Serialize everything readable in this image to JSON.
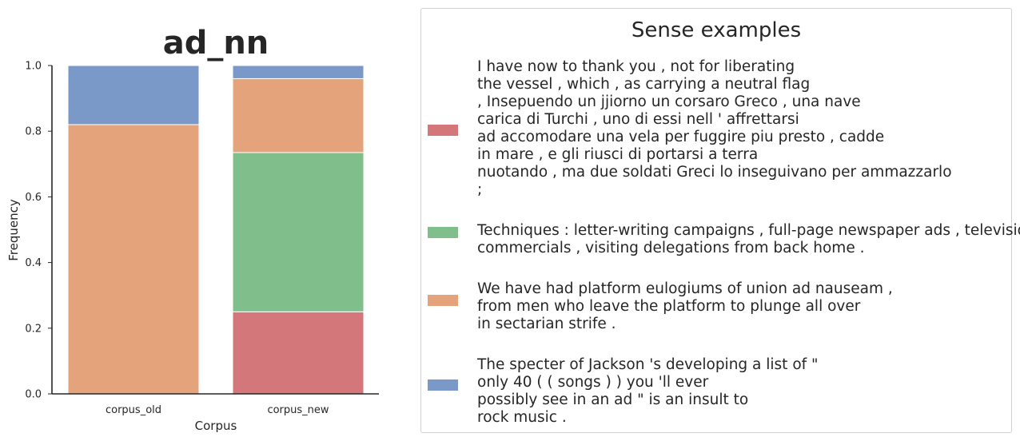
{
  "chart_data": {
    "type": "bar",
    "stacked": true,
    "title": "ad_nn",
    "xlabel": "Corpus",
    "ylabel": "Frequency",
    "ylim": [
      0,
      1
    ],
    "yticks": [
      "0.0",
      "0.2",
      "0.4",
      "0.6",
      "0.8",
      "1.0"
    ],
    "categories": [
      "corpus_old",
      "corpus_new"
    ],
    "series": [
      {
        "color": "#d3777a",
        "values": [
          0.0,
          0.25
        ]
      },
      {
        "color": "#80bf8c",
        "values": [
          0.0,
          0.485
        ]
      },
      {
        "color": "#e4a37b",
        "values": [
          0.82,
          0.225
        ]
      },
      {
        "color": "#7a99c8",
        "values": [
          0.18,
          0.04
        ]
      }
    ]
  },
  "legend": {
    "title": "Sense examples",
    "entries": [
      {
        "color": "#d3777a",
        "text": "I have now to thank you , not for liberating\nthe vessel , which , as carrying a neutral flag\n, Insepuendo un jjiorno un corsaro Greco , una nave\ncarica di Turchi , uno di essi nell ' affrettarsi\nad accomodare una vela per fuggire piu presto , cadde\nin mare , e gli riusci di portarsi a terra\nnuotando , ma due soldati Greci lo inseguivano per ammazzarlo\n;"
      },
      {
        "color": "#80bf8c",
        "text": "Techniques : letter-writing campaigns , full-page newspaper ads , television\ncommercials , visiting delegations from back home ."
      },
      {
        "color": "#e4a37b",
        "text": "We have had platform eulogiums of union ad nauseam ,\nfrom men who leave the platform to plunge all over\nin sectarian strife ."
      },
      {
        "color": "#7a99c8",
        "text": "The specter of Jackson 's developing a list of \"\nonly 40 ( ( songs ) ) you 'll ever\npossibly see in an ad \" is an insult to\nrock music ."
      }
    ]
  }
}
